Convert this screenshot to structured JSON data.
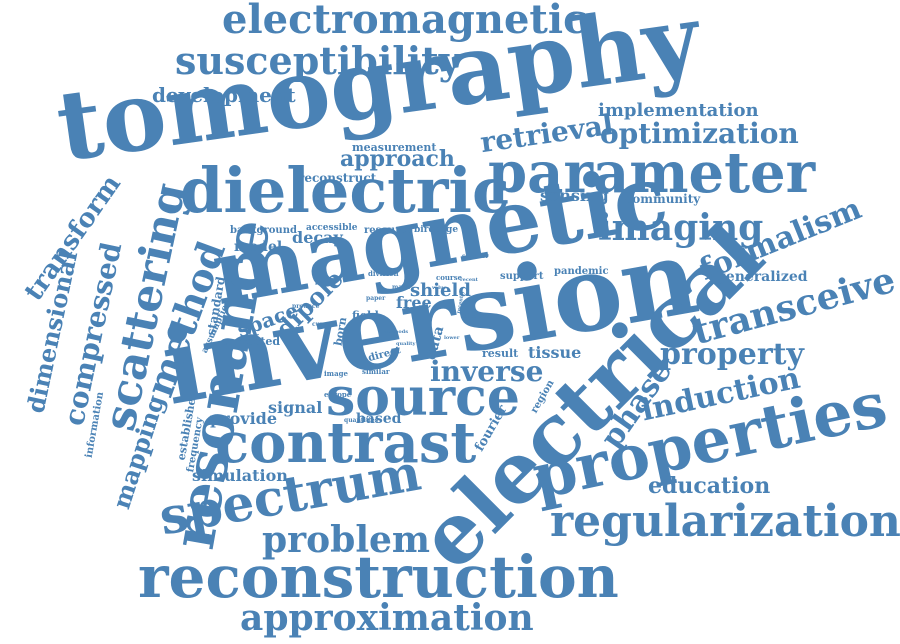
{
  "color": "#4a82b5",
  "words": [
    "tomography",
    "inversion",
    "electrical",
    "magnetic",
    "dielectric",
    "parameter",
    "reconstruction",
    "contrast",
    "properties",
    "resonance",
    "source",
    "spectrum",
    "regularization",
    "electromagnetic",
    "susceptibility",
    "approximation",
    "scattering",
    "method",
    "problem",
    "transceive",
    "imaging",
    "property",
    "optimization",
    "induction",
    "phase",
    "inverse",
    "formalism",
    "compressed",
    "transform",
    "dimensional",
    "mapping",
    "retrieval",
    "development",
    "approach",
    "implementation",
    "sensing",
    "community",
    "generalized",
    "education",
    "simulation",
    "decay",
    "dipole",
    "shield",
    "free",
    "space",
    "signal",
    "provide",
    "based",
    "tissue",
    "result",
    "reconstruct",
    "measurement",
    "background",
    "model",
    "accessible",
    "resource",
    "birdcage",
    "standard",
    "assumption",
    "corrected",
    "established",
    "frequency",
    "information",
    "fourier",
    "region",
    "division",
    "pandemic",
    "support",
    "scanner",
    "similar",
    "image",
    "europe",
    "quantities",
    "direct",
    "data",
    "born",
    "field",
    "mask",
    "course",
    "produce",
    "paper",
    "current",
    "electric",
    "lower",
    "recent",
    "value",
    "recently",
    "methods",
    "quality"
  ]
}
